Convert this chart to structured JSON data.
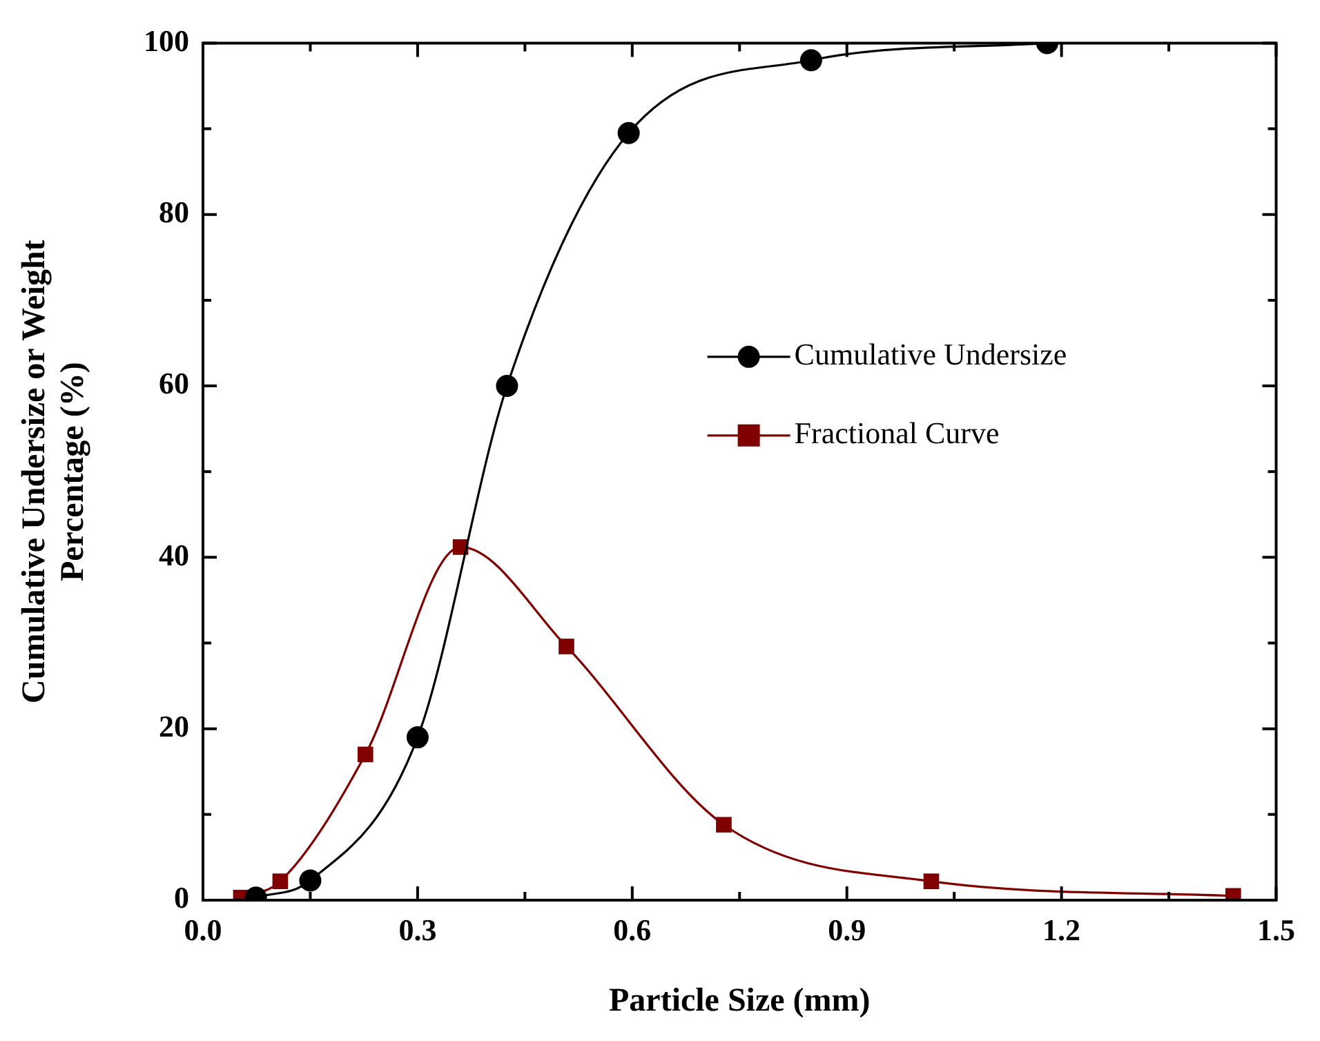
{
  "chart_data": {
    "type": "line",
    "xlabel": "Particle Size (mm)",
    "ylabel": "Cumulative Undersize or Weight Percentage (%)",
    "xlim": [
      0,
      1.5
    ],
    "ylim": [
      0,
      100
    ],
    "xticks": [
      {
        "value": 0,
        "label": "0.0"
      },
      {
        "value": 0.15,
        "label": null
      },
      {
        "value": 0.3,
        "label": "0.3"
      },
      {
        "value": 0.45,
        "label": null
      },
      {
        "value": 0.6,
        "label": "0.6"
      },
      {
        "value": 0.75,
        "label": null
      },
      {
        "value": 0.9,
        "label": "0.9"
      },
      {
        "value": 1.05,
        "label": null
      },
      {
        "value": 1.2,
        "label": "1.2"
      },
      {
        "value": 1.35,
        "label": null
      },
      {
        "value": 1.5,
        "label": "1.5"
      }
    ],
    "yticks": [
      0,
      {
        "value": 10,
        "label": null
      },
      20,
      {
        "value": 30,
        "label": null
      },
      40,
      {
        "value": 50,
        "label": null
      },
      60,
      {
        "value": 70,
        "label": null
      },
      80,
      {
        "value": 90,
        "label": null
      },
      100
    ],
    "grid": false,
    "legend": "right",
    "series": [
      {
        "name": "Cumulative Undersize",
        "marker": "circle",
        "color": "#000000",
        "x": [
          0.074,
          0.15,
          0.3,
          0.425,
          0.595,
          0.85,
          1.18
        ],
        "values": [
          0.3,
          2.3,
          19,
          60,
          89.5,
          98,
          100
        ]
      },
      {
        "name": "Fractional Curve",
        "marker": "square",
        "color": "#800000",
        "x": [
          0.053,
          0.108,
          0.227,
          0.36,
          0.508,
          0.728,
          1.018,
          1.44
        ],
        "values": [
          0.3,
          2.2,
          17,
          41.2,
          29.6,
          8.8,
          2.2,
          0.5
        ]
      }
    ]
  }
}
